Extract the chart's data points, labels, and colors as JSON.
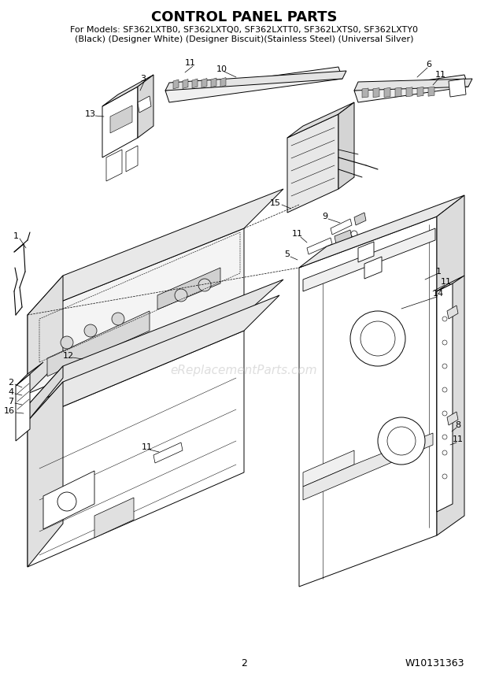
{
  "title": "CONTROL PANEL PARTS",
  "subtitle1": "For Models: SF362LXTB0, SF362LXTQ0, SF362LXTT0, SF362LXTS0, SF362LXTY0",
  "subtitle2": "(Black) (Designer White) (Designer Biscuit)(Stainless Steel) (Universal Silver)",
  "page_number": "2",
  "doc_number": "W10131363",
  "bg_color": "#ffffff",
  "title_fontsize": 13,
  "subtitle_fontsize": 8,
  "footer_fontsize": 9,
  "watermark_text": "eReplacementParts.com",
  "watermark_color": "#c8c8c8",
  "watermark_alpha": 0.6,
  "line_color": "#000000",
  "lw": 0.7,
  "lw_thin": 0.4,
  "lw_thick": 1.0
}
